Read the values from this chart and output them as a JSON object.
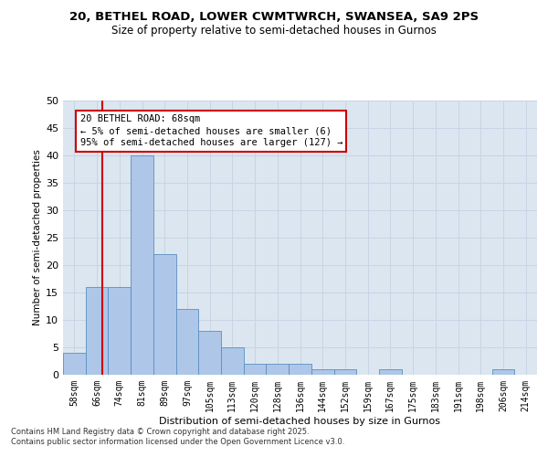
{
  "title_line1": "20, BETHEL ROAD, LOWER CWMTWRCH, SWANSEA, SA9 2PS",
  "title_line2": "Size of property relative to semi-detached houses in Gurnos",
  "xlabel": "Distribution of semi-detached houses by size in Gurnos",
  "ylabel": "Number of semi-detached properties",
  "categories": [
    "58sqm",
    "66sqm",
    "74sqm",
    "81sqm",
    "89sqm",
    "97sqm",
    "105sqm",
    "113sqm",
    "120sqm",
    "128sqm",
    "136sqm",
    "144sqm",
    "152sqm",
    "159sqm",
    "167sqm",
    "175sqm",
    "183sqm",
    "191sqm",
    "198sqm",
    "206sqm",
    "214sqm"
  ],
  "values": [
    4,
    16,
    16,
    40,
    22,
    12,
    8,
    5,
    2,
    2,
    2,
    1,
    1,
    0,
    1,
    0,
    0,
    0,
    0,
    1,
    0
  ],
  "bar_color": "#aec6e8",
  "bar_edge_color": "#5a8fc2",
  "grid_color": "#c8d4e4",
  "bg_color": "#dce6f0",
  "vline_color": "#cc0000",
  "vline_pos": 1.25,
  "annotation_text": "20 BETHEL ROAD: 68sqm\n← 5% of semi-detached houses are smaller (6)\n95% of semi-detached houses are larger (127) →",
  "annotation_box_facecolor": "#ffffff",
  "annotation_box_edgecolor": "#cc0000",
  "footer_text": "Contains HM Land Registry data © Crown copyright and database right 2025.\nContains public sector information licensed under the Open Government Licence v3.0.",
  "ylim": [
    0,
    50
  ],
  "yticks": [
    0,
    5,
    10,
    15,
    20,
    25,
    30,
    35,
    40,
    45,
    50
  ]
}
